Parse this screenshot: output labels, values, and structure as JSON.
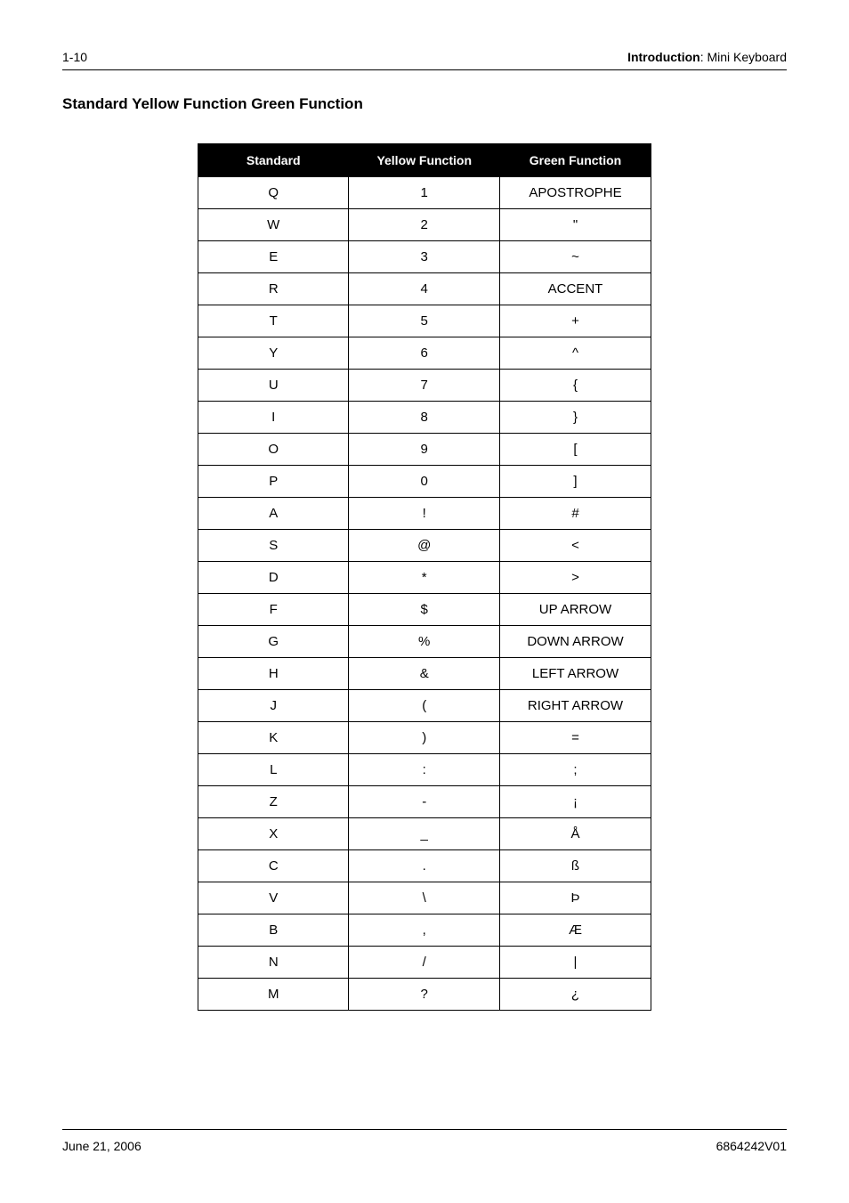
{
  "header": {
    "page_num": "1-10",
    "breadcrumb_bold": "Introduction",
    "breadcrumb_rest": ": Mini Keyboard"
  },
  "section_title": "Standard Yellow Function Green Function",
  "table": {
    "headers": [
      "Standard",
      "Yellow Function",
      "Green Function"
    ],
    "rows": [
      [
        "Q",
        "1",
        "APOSTROPHE"
      ],
      [
        "W",
        "2",
        "\""
      ],
      [
        "E",
        "3",
        "~"
      ],
      [
        "R",
        "4",
        "ACCENT"
      ],
      [
        "T",
        "5",
        "+"
      ],
      [
        "Y",
        "6",
        "^"
      ],
      [
        "U",
        "7",
        "{"
      ],
      [
        "I",
        "8",
        "}"
      ],
      [
        "O",
        "9",
        "["
      ],
      [
        "P",
        "0",
        "]"
      ],
      [
        "A",
        "!",
        "#"
      ],
      [
        "S",
        "@",
        "<"
      ],
      [
        "D",
        "*",
        ">"
      ],
      [
        "F",
        "$",
        "UP ARROW"
      ],
      [
        "G",
        "%",
        "DOWN ARROW"
      ],
      [
        "H",
        "&",
        "LEFT ARROW"
      ],
      [
        "J",
        "(",
        "RIGHT ARROW"
      ],
      [
        "K",
        ")",
        "="
      ],
      [
        "L",
        ":",
        ";"
      ],
      [
        "Z",
        "-",
        "¡"
      ],
      [
        "X",
        "_",
        "Å"
      ],
      [
        "C",
        ".",
        "ß"
      ],
      [
        "V",
        "\\",
        "Þ"
      ],
      [
        "B",
        ",",
        "Æ"
      ],
      [
        "N",
        "/",
        "|"
      ],
      [
        "M",
        "?",
        "¿"
      ]
    ]
  },
  "footer": {
    "date": "June 21, 2006",
    "docnum": "6864242V01"
  }
}
